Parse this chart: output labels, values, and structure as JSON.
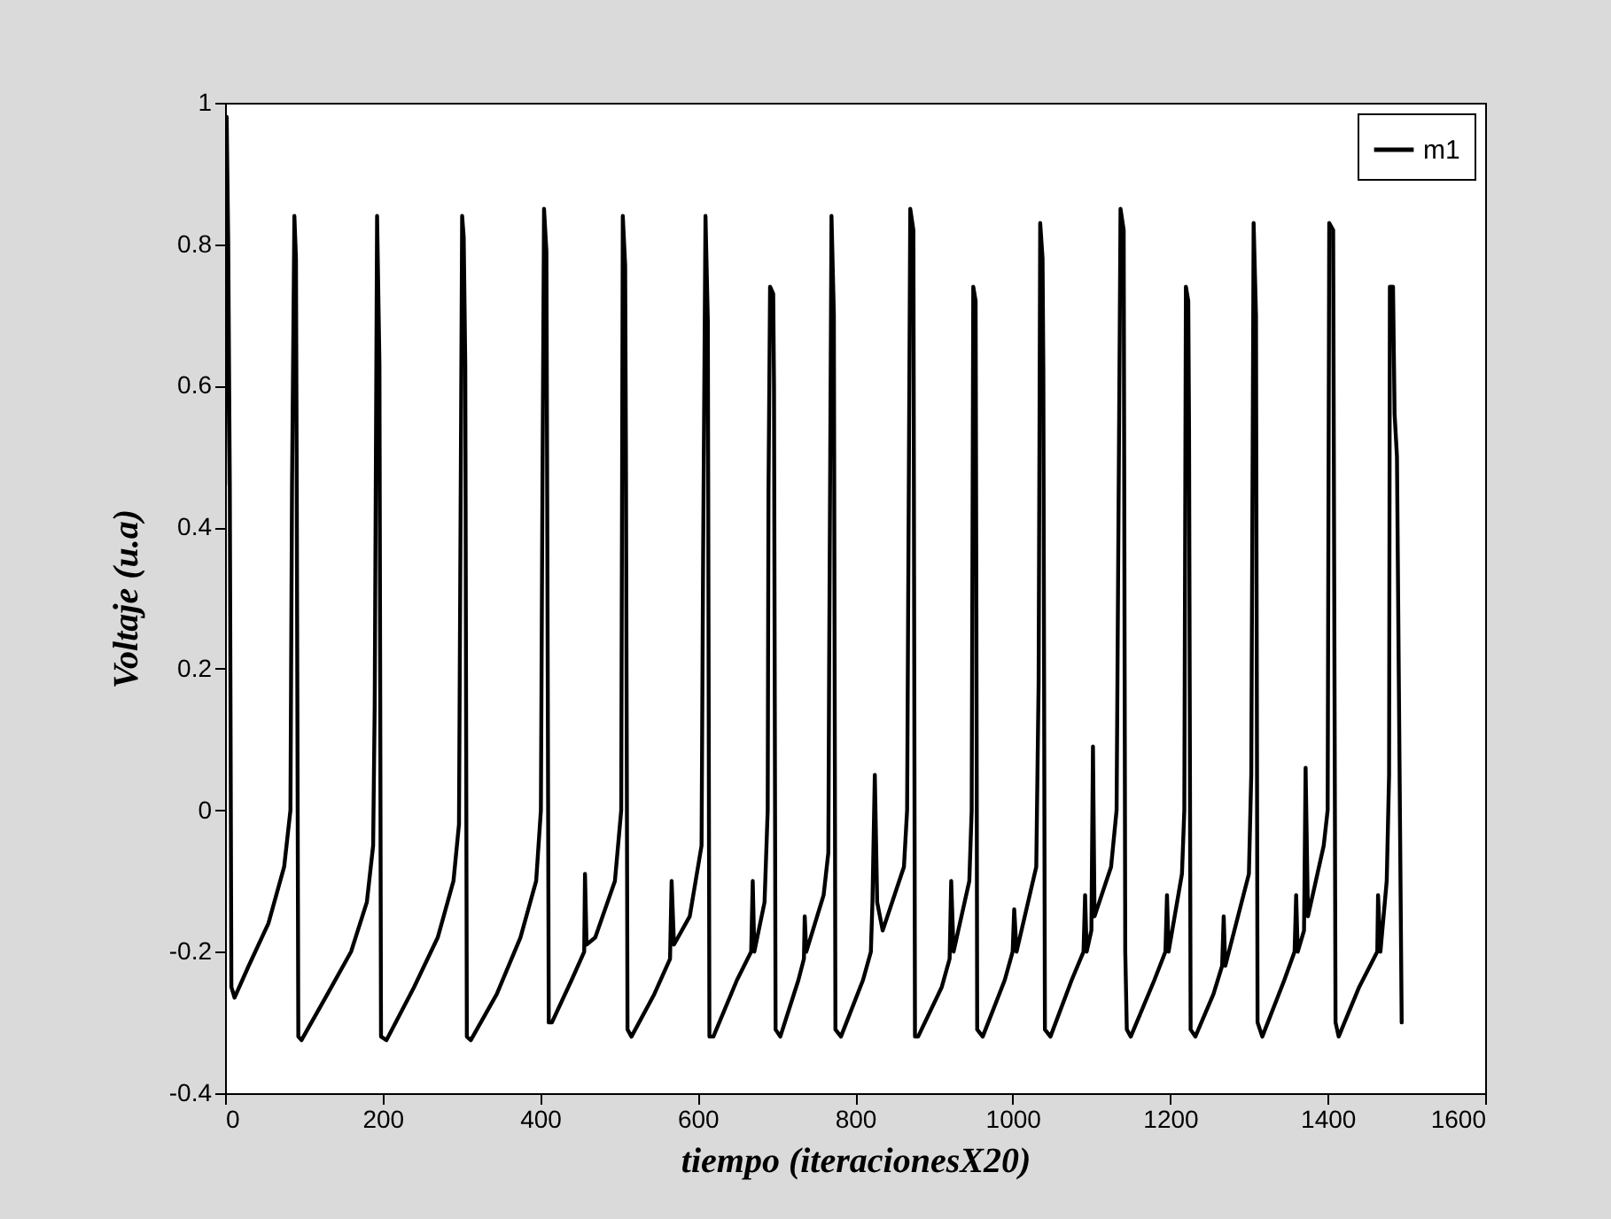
{
  "chart_data": {
    "type": "line",
    "xlabel": "tiempo (iteracionesX20)",
    "ylabel": "Voltaje (u.a)",
    "xlim": [
      0,
      1600
    ],
    "ylim": [
      -0.4,
      1
    ],
    "xticks": [
      0,
      200,
      400,
      600,
      800,
      1000,
      1200,
      1400,
      1600
    ],
    "yticks": [
      -0.4,
      -0.2,
      0,
      0.2,
      0.4,
      0.6,
      0.8,
      1
    ],
    "grid": false,
    "legend": "top right",
    "marker": "none",
    "line_style": "solid",
    "series": [
      {
        "name": "m1",
        "color": "#000000",
        "x": [
          0,
          2,
          4,
          6,
          8,
          12,
          30,
          55,
          75,
          83,
          85,
          88,
          90,
          91,
          93,
          97,
          130,
          160,
          180,
          188,
          190,
          193,
          196,
          198,
          205,
          240,
          270,
          290,
          297,
          299,
          301,
          303,
          305,
          307,
          312,
          345,
          375,
          395,
          401,
          403,
          405,
          408,
          409,
          411,
          415,
          440,
          456,
          457,
          459,
          470,
          495,
          503,
          505,
          508,
          509,
          511,
          516,
          545,
          565,
          567,
          570,
          590,
          605,
          607,
          610,
          613,
          615,
          620,
          650,
          668,
          670,
          672,
          685,
          689,
          690,
          692,
          696,
          697,
          699,
          705,
          728,
          735,
          736,
          738,
          760,
          766,
          767,
          770,
          773,
          775,
          782,
          810,
          820,
          822,
          825,
          828,
          835,
          862,
          866,
          870,
          874,
          876,
          880,
          910,
          920,
          922,
          925,
          945,
          948,
          950,
          953,
          954,
          955,
          962,
          990,
          1000,
          1002,
          1005,
          1030,
          1033,
          1035,
          1038,
          1039,
          1041,
          1048,
          1075,
          1090,
          1092,
          1094,
          1100,
          1102,
          1104,
          1125,
          1132,
          1137,
          1141,
          1143,
          1145,
          1150,
          1180,
          1194,
          1196,
          1198,
          1215,
          1218,
          1220,
          1223,
          1224,
          1226,
          1232,
          1255,
          1266,
          1268,
          1270,
          1300,
          1303,
          1306,
          1309,
          1311,
          1317,
          1345,
          1358,
          1360,
          1362,
          1370,
          1372,
          1375,
          1395,
          1400,
          1402,
          1407,
          1410,
          1414,
          1440,
          1463,
          1464,
          1467,
          1475,
          1478,
          1479,
          1483,
          1485,
          1488,
          1494
        ],
        "values": [
          0.46,
          0.98,
          0.8,
          0.46,
          -0.25,
          -0.265,
          -0.22,
          -0.16,
          -0.08,
          0.0,
          0.46,
          0.84,
          0.78,
          0.46,
          -0.32,
          -0.325,
          -0.26,
          -0.2,
          -0.13,
          -0.05,
          0.15,
          0.84,
          0.63,
          -0.32,
          -0.325,
          -0.25,
          -0.18,
          -0.1,
          -0.02,
          0.41,
          0.84,
          0.81,
          0.63,
          -0.32,
          -0.325,
          -0.26,
          -0.18,
          -0.1,
          0.0,
          0.46,
          0.85,
          0.79,
          0.45,
          -0.3,
          -0.3,
          -0.24,
          -0.2,
          -0.09,
          -0.19,
          -0.18,
          -0.1,
          0.0,
          0.84,
          0.77,
          0.5,
          -0.31,
          -0.32,
          -0.26,
          -0.21,
          -0.1,
          -0.19,
          -0.15,
          -0.05,
          0.36,
          0.84,
          0.69,
          -0.32,
          -0.32,
          -0.24,
          -0.2,
          -0.1,
          -0.2,
          -0.13,
          0.0,
          0.45,
          0.74,
          0.73,
          0.6,
          -0.31,
          -0.32,
          -0.24,
          -0.21,
          -0.15,
          -0.2,
          -0.12,
          -0.06,
          0.2,
          0.84,
          0.7,
          -0.31,
          -0.32,
          -0.24,
          -0.2,
          -0.13,
          0.05,
          -0.13,
          -0.17,
          -0.08,
          0.0,
          0.85,
          0.82,
          -0.32,
          -0.32,
          -0.25,
          -0.21,
          -0.1,
          -0.2,
          -0.1,
          0.0,
          0.74,
          0.72,
          0.28,
          -0.31,
          -0.32,
          -0.24,
          -0.2,
          -0.14,
          -0.2,
          -0.08,
          0.18,
          0.83,
          0.78,
          0.62,
          -0.31,
          -0.32,
          -0.24,
          -0.2,
          -0.12,
          -0.2,
          -0.17,
          0.09,
          -0.15,
          -0.08,
          0.0,
          0.85,
          0.82,
          -0.2,
          -0.31,
          -0.32,
          -0.24,
          -0.2,
          -0.12,
          -0.2,
          -0.09,
          0.0,
          0.74,
          0.72,
          0.54,
          -0.31,
          -0.32,
          -0.26,
          -0.22,
          -0.15,
          -0.22,
          -0.09,
          0.05,
          0.83,
          0.7,
          -0.3,
          -0.32,
          -0.24,
          -0.2,
          -0.12,
          -0.2,
          -0.17,
          0.06,
          -0.15,
          -0.05,
          0.0,
          0.83,
          0.82,
          -0.3,
          -0.32,
          -0.25,
          -0.2,
          -0.12,
          -0.2,
          -0.1,
          0.05,
          0.74,
          0.74,
          0.56,
          0.5,
          -0.3
        ]
      }
    ]
  }
}
